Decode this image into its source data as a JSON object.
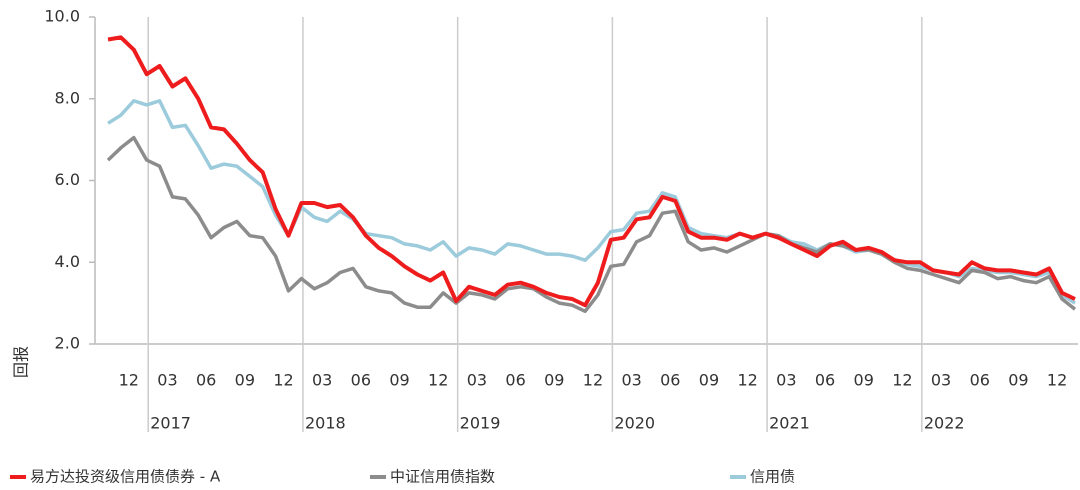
{
  "chart_data": {
    "type": "line",
    "y_label": "回报",
    "categories": [
      null,
      null,
      "12",
      null,
      null,
      "03",
      null,
      null,
      "06",
      null,
      null,
      "09",
      null,
      null,
      "12",
      null,
      null,
      "03",
      null,
      null,
      "06",
      null,
      null,
      "09",
      null,
      null,
      "12",
      null,
      null,
      "03",
      null,
      null,
      "06",
      null,
      null,
      "09",
      null,
      null,
      "12",
      null,
      null,
      "03",
      null,
      null,
      "06",
      null,
      null,
      "09",
      null,
      null,
      "12",
      null,
      null,
      "03",
      null,
      null,
      "06",
      null,
      null,
      "09",
      null,
      null,
      "12",
      null,
      null,
      "03",
      null,
      null,
      "06",
      null,
      null,
      "09",
      null,
      null,
      "12",
      null
    ],
    "year_labels": [
      null,
      null,
      null,
      "2017",
      null,
      null,
      null,
      null,
      null,
      null,
      null,
      null,
      null,
      null,
      null,
      "2018",
      null,
      null,
      null,
      null,
      null,
      null,
      null,
      null,
      null,
      null,
      null,
      "2019",
      null,
      null,
      null,
      null,
      null,
      null,
      null,
      null,
      null,
      null,
      null,
      "2020",
      null,
      null,
      null,
      null,
      null,
      null,
      null,
      null,
      null,
      null,
      null,
      "2021",
      null,
      null,
      null,
      null,
      null,
      null,
      null,
      null,
      null,
      null,
      null,
      "2022",
      null,
      null,
      null,
      null,
      null,
      null,
      null,
      null,
      null,
      null,
      null,
      null
    ],
    "ylim": [
      2,
      10
    ],
    "yticks": [
      {
        "value": 2,
        "label": "2.0"
      },
      {
        "value": 4,
        "label": "4.0"
      },
      {
        "value": 6,
        "label": "6.0"
      },
      {
        "value": 8,
        "label": "8.0"
      },
      {
        "value": 10,
        "label": "10.0"
      }
    ],
    "series": [
      {
        "name": "易方达投资级信用债债券 - A",
        "color": "#ee1c1c",
        "values": [
          9.45,
          9.5,
          9.2,
          8.6,
          8.8,
          8.3,
          8.5,
          8.0,
          7.3,
          7.25,
          6.9,
          6.5,
          6.2,
          5.3,
          4.65,
          5.45,
          5.45,
          5.35,
          5.4,
          5.1,
          4.65,
          4.35,
          4.15,
          3.9,
          3.7,
          3.55,
          3.75,
          3.05,
          3.4,
          3.3,
          3.2,
          3.45,
          3.5,
          3.4,
          3.25,
          3.15,
          3.1,
          2.95,
          3.5,
          4.55,
          4.6,
          5.05,
          5.1,
          5.6,
          5.5,
          4.75,
          4.6,
          4.6,
          4.55,
          4.7,
          4.6,
          4.7,
          4.6,
          4.45,
          4.3,
          4.15,
          4.4,
          4.5,
          4.3,
          4.35,
          4.25,
          4.05,
          4.0,
          4.0,
          3.8,
          3.75,
          3.7,
          4.0,
          3.85,
          3.8,
          3.8,
          3.75,
          3.7,
          3.85,
          3.25,
          3.1
        ]
      },
      {
        "name": "中证信用债指数",
        "color": "#8c8c8c",
        "values": [
          6.5,
          6.8,
          7.05,
          6.5,
          6.35,
          5.6,
          5.55,
          5.15,
          4.6,
          4.85,
          5.0,
          4.65,
          4.6,
          4.15,
          3.3,
          3.6,
          3.35,
          3.5,
          3.75,
          3.85,
          3.4,
          3.3,
          3.25,
          3.0,
          2.9,
          2.9,
          3.25,
          3.0,
          3.25,
          3.2,
          3.1,
          3.35,
          3.4,
          3.35,
          3.15,
          3.0,
          2.95,
          2.8,
          3.2,
          3.9,
          3.95,
          4.5,
          4.65,
          5.2,
          5.25,
          4.5,
          4.3,
          4.35,
          4.25,
          4.4,
          4.55,
          4.7,
          4.65,
          4.45,
          4.35,
          4.25,
          4.45,
          4.4,
          4.3,
          4.3,
          4.2,
          4.0,
          3.85,
          3.8,
          3.7,
          3.6,
          3.5,
          3.8,
          3.75,
          3.6,
          3.65,
          3.55,
          3.5,
          3.65,
          3.1,
          2.85
        ]
      },
      {
        "name": "信用债",
        "color": "#9ccbdc",
        "values": [
          7.4,
          7.6,
          7.95,
          7.85,
          7.95,
          7.3,
          7.35,
          6.85,
          6.3,
          6.4,
          6.35,
          6.1,
          5.85,
          5.15,
          4.65,
          5.35,
          5.1,
          5.0,
          5.25,
          5.05,
          4.7,
          4.65,
          4.6,
          4.45,
          4.4,
          4.3,
          4.5,
          4.15,
          4.35,
          4.3,
          4.2,
          4.45,
          4.4,
          4.3,
          4.2,
          4.2,
          4.15,
          4.05,
          4.35,
          4.75,
          4.8,
          5.2,
          5.25,
          5.7,
          5.6,
          4.85,
          4.7,
          4.65,
          4.6,
          4.7,
          4.6,
          4.7,
          4.65,
          4.5,
          4.45,
          4.3,
          4.45,
          4.4,
          4.25,
          4.3,
          4.2,
          4.05,
          3.95,
          3.9,
          3.8,
          3.75,
          3.65,
          3.85,
          3.8,
          3.75,
          3.75,
          3.7,
          3.65,
          3.75,
          3.2,
          3.0
        ]
      }
    ]
  }
}
